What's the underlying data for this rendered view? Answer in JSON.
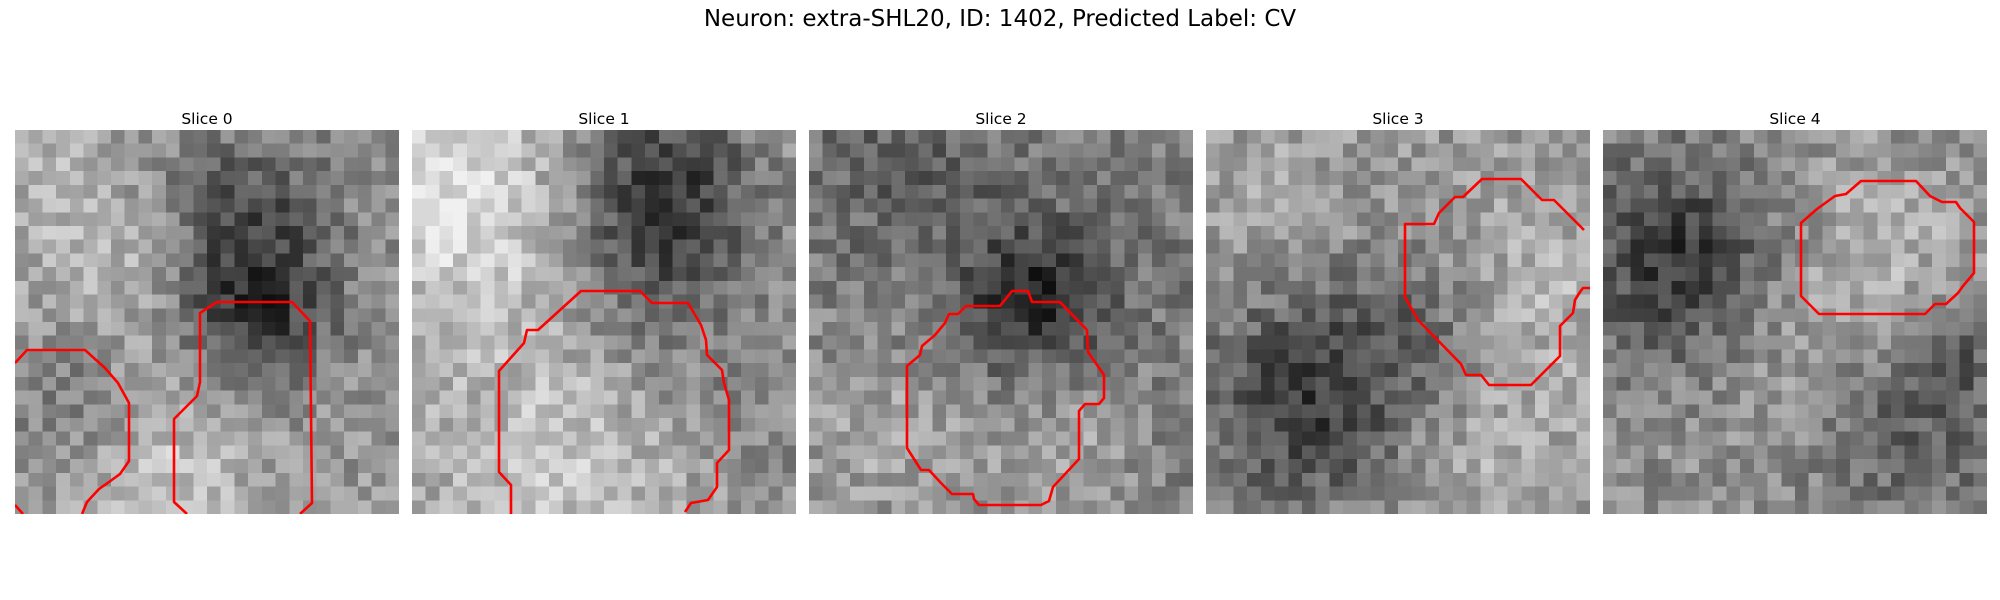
{
  "figure": {
    "title": "Neuron: extra-SHL20, ID: 1402, Predicted Label: CV",
    "contour_color": "#ff0000",
    "image_colormap": "gray"
  },
  "slices": [
    {
      "label": "Slice 0"
    },
    {
      "label": "Slice 1"
    },
    {
      "label": "Slice 2"
    },
    {
      "label": "Slice 3"
    },
    {
      "label": "Slice 4"
    }
  ]
}
